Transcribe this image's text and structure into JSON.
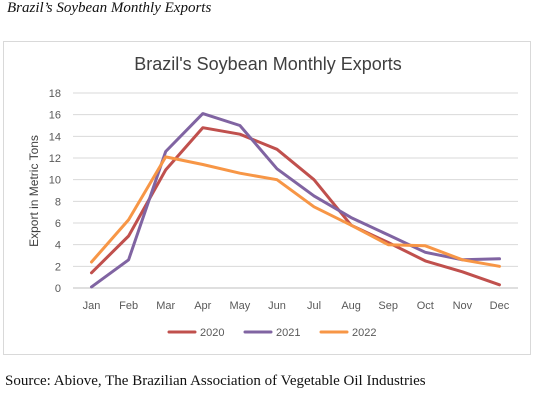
{
  "caption": "Brazil’s Soybean Monthly Exports",
  "source": "Source: Abiove, The Brazilian Association of Vegetable Oil Industries",
  "chart_data": {
    "type": "line",
    "title": "Brazil's Soybean Monthly Exports",
    "xlabel": "",
    "ylabel": "Export in Metric Tons",
    "categories": [
      "Jan",
      "Feb",
      "Mar",
      "Apr",
      "May",
      "Jun",
      "Jul",
      "Aug",
      "Sep",
      "Oct",
      "Nov",
      "Dec"
    ],
    "ylim": [
      0,
      18
    ],
    "yticks": [
      0,
      2,
      4,
      6,
      8,
      10,
      12,
      14,
      16,
      18
    ],
    "grid": true,
    "legend_position": "bottom",
    "series": [
      {
        "name": "2020",
        "color": "#c0504d",
        "values": [
          1.4,
          4.8,
          10.9,
          14.8,
          14.2,
          12.8,
          10.0,
          5.8,
          4.2,
          2.5,
          1.5,
          0.3
        ]
      },
      {
        "name": "2021",
        "color": "#8064a2",
        "values": [
          0.1,
          2.6,
          12.6,
          16.1,
          15.0,
          11.0,
          8.5,
          6.5,
          4.9,
          3.3,
          2.6,
          2.7
        ]
      },
      {
        "name": "2022",
        "color": "#f79646",
        "values": [
          2.4,
          6.3,
          12.1,
          11.4,
          10.6,
          10.0,
          7.5,
          5.8,
          4.0,
          3.9,
          2.6,
          2.0
        ]
      }
    ]
  }
}
